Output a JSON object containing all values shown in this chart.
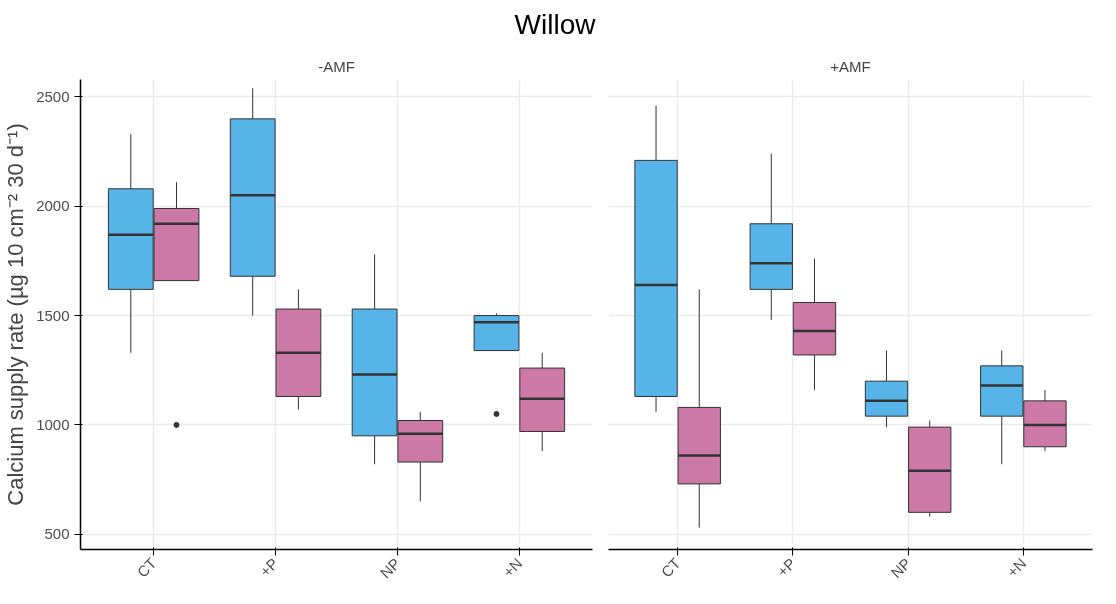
{
  "chart_data": [
    {
      "type": "box",
      "title": "Willow",
      "subtitle": "-AMF",
      "ylabel": "Calcium supply rate (µg 10 cm⁻² 30 d⁻¹)",
      "categories": [
        "CT",
        "+P",
        "NP",
        "+N"
      ],
      "ylim": [
        430,
        2580
      ],
      "yticks": [
        500,
        1000,
        1500,
        2000,
        2500
      ],
      "grid": true,
      "series": [
        {
          "color": "#56b4e9",
          "boxes": [
            {
              "low": 1330,
              "q1": 1620,
              "median": 1870,
              "q3": 2080,
              "high": 2330
            },
            {
              "low": 1500,
              "q1": 1680,
              "median": 2050,
              "q3": 2400,
              "high": 2540
            },
            {
              "low": 820,
              "q1": 950,
              "median": 1230,
              "q3": 1530,
              "high": 1780
            },
            {
              "low": 1340,
              "q1": 1340,
              "median": 1470,
              "q3": 1500,
              "high": 1510,
              "outliers": [
                1050
              ]
            }
          ]
        },
        {
          "color": "#cc79a7",
          "boxes": [
            {
              "low": 1660,
              "q1": 1660,
              "median": 1920,
              "q3": 1990,
              "high": 2110,
              "outliers": [
                1000
              ]
            },
            {
              "low": 1070,
              "q1": 1130,
              "median": 1330,
              "q3": 1530,
              "high": 1620
            },
            {
              "low": 650,
              "q1": 830,
              "median": 960,
              "q3": 1020,
              "high": 1060
            },
            {
              "low": 880,
              "q1": 970,
              "median": 1120,
              "q3": 1260,
              "high": 1330
            }
          ]
        }
      ]
    },
    {
      "type": "box",
      "subtitle": "+AMF",
      "categories": [
        "CT",
        "+P",
        "NP",
        "+N"
      ],
      "ylim": [
        430,
        2580
      ],
      "yticks": [
        500,
        1000,
        1500,
        2000,
        2500
      ],
      "grid": true,
      "tick_labels": "x",
      "series": [
        {
          "color": "#56b4e9",
          "boxes": [
            {
              "low": 1060,
              "q1": 1130,
              "median": 1640,
              "q3": 2210,
              "high": 2460
            },
            {
              "low": 1480,
              "q1": 1620,
              "median": 1740,
              "q3": 1920,
              "high": 2240
            },
            {
              "low": 990,
              "q1": 1040,
              "median": 1110,
              "q3": 1200,
              "high": 1340
            },
            {
              "low": 820,
              "q1": 1040,
              "median": 1180,
              "q3": 1270,
              "high": 1340
            }
          ]
        },
        {
          "color": "#cc79a7",
          "boxes": [
            {
              "low": 530,
              "q1": 730,
              "median": 860,
              "q3": 1080,
              "high": 1620
            },
            {
              "low": 1160,
              "q1": 1320,
              "median": 1430,
              "q3": 1560,
              "high": 1760
            },
            {
              "low": 580,
              "q1": 600,
              "median": 790,
              "q3": 990,
              "high": 1020
            },
            {
              "low": 880,
              "q1": 900,
              "median": 1000,
              "q3": 1110,
              "high": 1160
            }
          ]
        }
      ]
    }
  ]
}
